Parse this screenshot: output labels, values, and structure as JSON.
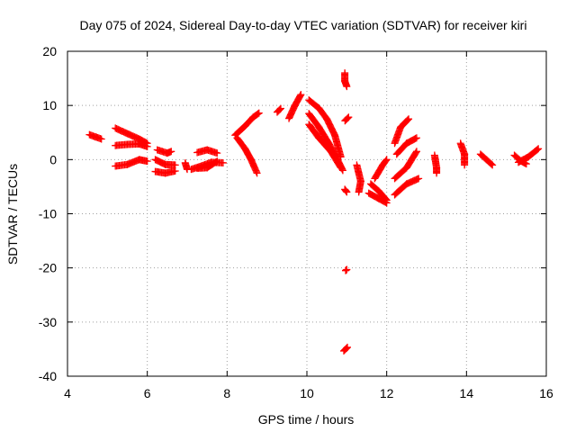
{
  "chart_data": {
    "type": "scatter",
    "title": "Day 075 of 2024, Sidereal Day-to-day VTEC variation (SDTVAR) for receiver kiri",
    "xlabel": "GPS time / hours",
    "ylabel": "SDTVAR / TECUs",
    "xlim": [
      4,
      16
    ],
    "ylim": [
      -40,
      20
    ],
    "xticks": [
      "4",
      "6",
      "8",
      "10",
      "12",
      "14",
      "16"
    ],
    "yticks": [
      "20",
      "10",
      "0",
      "-10",
      "-20",
      "-30",
      "-40"
    ],
    "grid": true,
    "marker": "plus",
    "color": "#ff0000",
    "tracks": [
      {
        "points": [
          [
            4.55,
            4.6
          ],
          [
            4.7,
            4.2
          ],
          [
            4.85,
            3.8
          ]
        ]
      },
      {
        "points": [
          [
            5.2,
            5.8
          ],
          [
            5.5,
            4.8
          ],
          [
            5.8,
            3.8
          ],
          [
            6.0,
            3.0
          ]
        ]
      },
      {
        "points": [
          [
            5.2,
            2.6
          ],
          [
            5.5,
            2.8
          ],
          [
            5.8,
            2.9
          ],
          [
            6.0,
            2.4
          ]
        ]
      },
      {
        "points": [
          [
            5.2,
            -1.2
          ],
          [
            5.5,
            -0.9
          ],
          [
            5.8,
            0.0
          ],
          [
            6.0,
            -0.3
          ]
        ]
      },
      {
        "points": [
          [
            6.25,
            1.8
          ],
          [
            6.5,
            1.2
          ],
          [
            6.6,
            1.5
          ]
        ]
      },
      {
        "points": [
          [
            6.2,
            0.0
          ],
          [
            6.45,
            -0.9
          ],
          [
            6.7,
            -1.0
          ]
        ]
      },
      {
        "points": [
          [
            6.2,
            -2.2
          ],
          [
            6.45,
            -2.5
          ],
          [
            6.7,
            -2.1
          ]
        ]
      },
      {
        "points": [
          [
            6.95,
            -0.6
          ],
          [
            7.0,
            -1.8
          ]
        ]
      },
      {
        "points": [
          [
            7.25,
            1.3
          ],
          [
            7.5,
            1.8
          ],
          [
            7.75,
            1.2
          ]
        ]
      },
      {
        "points": [
          [
            7.25,
            -1.6
          ],
          [
            7.5,
            -1.5
          ],
          [
            7.75,
            -0.3
          ]
        ]
      },
      {
        "points": [
          [
            7.1,
            -1.8
          ],
          [
            7.35,
            -1.2
          ],
          [
            7.6,
            -0.5
          ],
          [
            7.9,
            -0.6
          ]
        ]
      },
      {
        "points": [
          [
            8.25,
            4.0
          ],
          [
            8.45,
            2.0
          ],
          [
            8.6,
            0.0
          ],
          [
            8.75,
            -2.5
          ]
        ]
      },
      {
        "points": [
          [
            8.2,
            4.5
          ],
          [
            8.45,
            6.2
          ],
          [
            8.65,
            7.8
          ],
          [
            8.8,
            8.6
          ]
        ]
      },
      {
        "points": [
          [
            9.3,
            9.1
          ]
        ]
      },
      {
        "points": [
          [
            9.55,
            7.6
          ],
          [
            9.7,
            10.0
          ],
          [
            9.85,
            12.0
          ]
        ]
      },
      {
        "points": [
          [
            10.05,
            11.0
          ],
          [
            10.3,
            9.5
          ],
          [
            10.5,
            7.5
          ],
          [
            10.7,
            4.5
          ],
          [
            10.85,
            0.5
          ]
        ]
      },
      {
        "points": [
          [
            10.05,
            8.5
          ],
          [
            10.3,
            6.0
          ],
          [
            10.55,
            3.0
          ],
          [
            10.8,
            -0.5
          ],
          [
            10.9,
            -2.0
          ]
        ]
      },
      {
        "points": [
          [
            10.05,
            6.5
          ],
          [
            10.3,
            4.0
          ],
          [
            10.6,
            1.5
          ],
          [
            10.85,
            -1.5
          ]
        ]
      },
      {
        "points": [
          [
            10.95,
            16.0
          ],
          [
            10.95,
            14.5
          ],
          [
            11.0,
            13.5
          ]
        ]
      },
      {
        "points": [
          [
            11.0,
            7.5
          ]
        ]
      },
      {
        "points": [
          [
            10.97,
            -20.5
          ],
          [
            11.0,
            -20.3
          ]
        ]
      },
      {
        "points": [
          [
            10.97,
            -35.0
          ]
        ]
      },
      {
        "points": [
          [
            10.95,
            -5.5
          ],
          [
            11.0,
            -6.0
          ]
        ]
      },
      {
        "points": [
          [
            11.25,
            -1.0
          ],
          [
            11.35,
            -4.0
          ],
          [
            11.3,
            -6.0
          ]
        ]
      },
      {
        "points": [
          [
            11.6,
            -4.5
          ],
          [
            11.8,
            -5.8
          ],
          [
            12.0,
            -7.5
          ]
        ]
      },
      {
        "points": [
          [
            11.55,
            -6.2
          ],
          [
            11.8,
            -7.2
          ],
          [
            12.0,
            -8.0
          ]
        ]
      },
      {
        "points": [
          [
            11.7,
            -3.5
          ],
          [
            11.9,
            -1.0
          ],
          [
            12.0,
            0.0
          ]
        ]
      },
      {
        "points": [
          [
            12.2,
            3.0
          ],
          [
            12.35,
            6.0
          ],
          [
            12.55,
            7.5
          ]
        ]
      },
      {
        "points": [
          [
            12.2,
            -3.5
          ],
          [
            12.5,
            -1.5
          ],
          [
            12.75,
            1.5
          ]
        ]
      },
      {
        "points": [
          [
            12.25,
            1.0
          ],
          [
            12.5,
            3.0
          ],
          [
            12.75,
            4.0
          ]
        ]
      },
      {
        "points": [
          [
            12.2,
            -6.5
          ],
          [
            12.5,
            -4.5
          ],
          [
            12.8,
            -3.5
          ]
        ]
      },
      {
        "points": [
          [
            13.2,
            0.8
          ],
          [
            13.25,
            -1.5
          ],
          [
            13.25,
            -2.5
          ]
        ]
      },
      {
        "points": [
          [
            13.85,
            3.0
          ],
          [
            13.95,
            1.0
          ],
          [
            13.95,
            -1.0
          ]
        ]
      },
      {
        "points": [
          [
            14.35,
            1.0
          ],
          [
            14.5,
            0.0
          ],
          [
            14.65,
            -1.0
          ]
        ]
      },
      {
        "points": [
          [
            15.2,
            0.8
          ],
          [
            15.35,
            -0.2
          ],
          [
            15.5,
            -0.8
          ]
        ]
      },
      {
        "points": [
          [
            15.3,
            -0.5
          ],
          [
            15.55,
            0.5
          ],
          [
            15.8,
            2.0
          ]
        ]
      }
    ]
  }
}
